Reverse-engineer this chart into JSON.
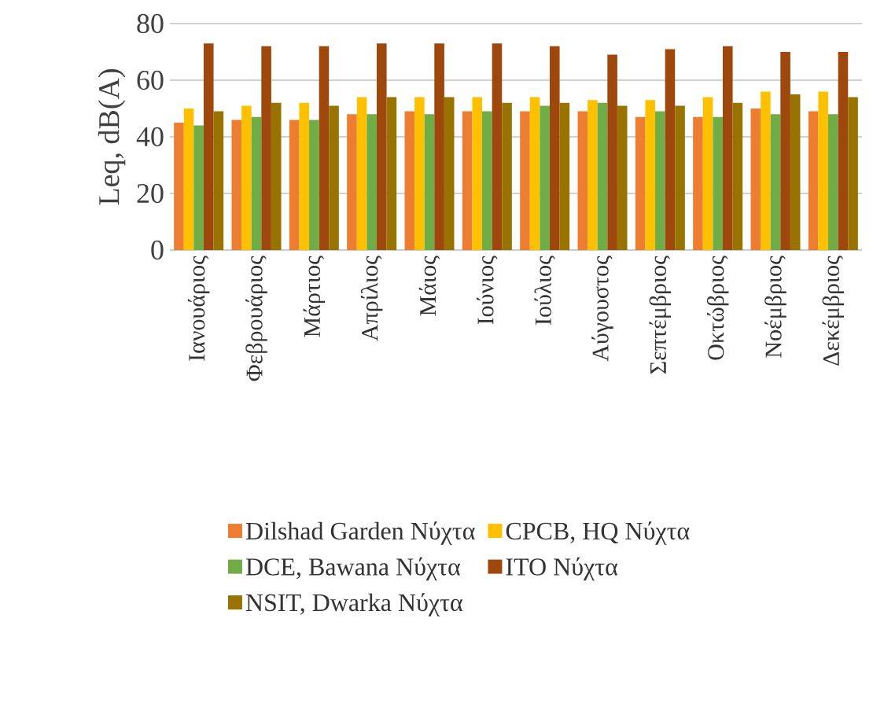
{
  "chart_data": {
    "type": "bar",
    "ylabel": "Leq, dB(A)",
    "categories": [
      "Ιανουάριος",
      "Φεβρουάριος",
      "Μάρτιος",
      "Απρίλιος",
      "Μάιος",
      "Ιούνιος",
      "Ιούλιος",
      "Αύγουστος",
      "Σεπτέμβριος",
      "Οκτώβριος",
      "Νοέμβριος",
      "Δεκέμβριος"
    ],
    "series": [
      {
        "name": "Dilshad Garden Νύχτα",
        "color": "#ed7d31",
        "values": [
          45,
          46,
          46,
          48,
          49,
          49,
          49,
          49,
          47,
          47,
          50,
          49
        ]
      },
      {
        "name": "CPCB, HQ Νύχτα",
        "color": "#ffc000",
        "values": [
          50,
          51,
          52,
          54,
          54,
          54,
          54,
          53,
          53,
          54,
          56,
          56
        ]
      },
      {
        "name": "DCE,  Bawana Νύχτα",
        "color": "#70ad47",
        "values": [
          44,
          47,
          46,
          48,
          48,
          49,
          51,
          52,
          49,
          47,
          48,
          48
        ]
      },
      {
        "name": "ITO Νύχτα",
        "color": "#9e480e",
        "values": [
          73,
          72,
          72,
          73,
          73,
          73,
          72,
          69,
          71,
          72,
          70,
          70
        ]
      },
      {
        "name": "NSIT,  Dwarka Νύχτα",
        "color": "#997300",
        "values": [
          49,
          52,
          51,
          54,
          54,
          52,
          52,
          51,
          51,
          52,
          55,
          54
        ]
      }
    ],
    "ylim": [
      0,
      80
    ],
    "yticks": [
      0,
      20,
      40,
      60,
      80
    ],
    "grid": "y",
    "legend": "bottom"
  }
}
